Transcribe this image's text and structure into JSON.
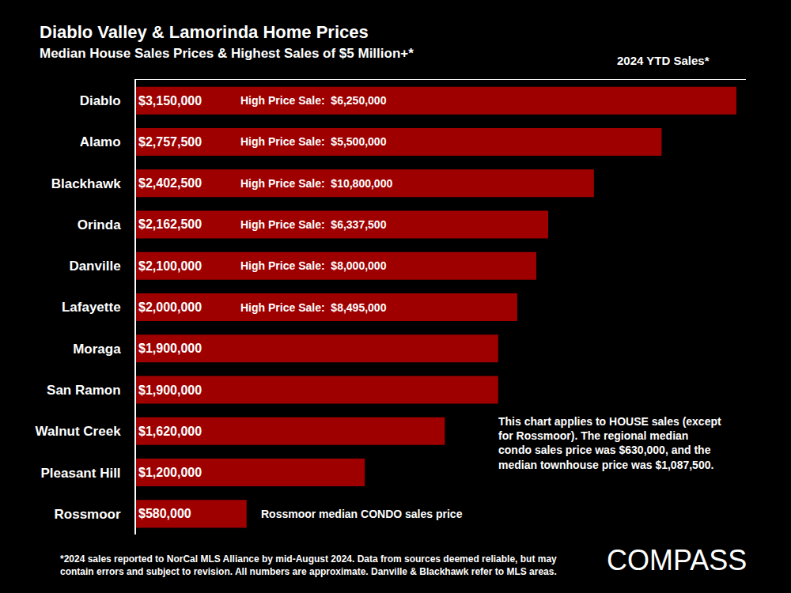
{
  "chart_data": {
    "type": "bar",
    "orientation": "horizontal",
    "title": "Diablo Valley & Lamorinda Home Prices",
    "subtitle": "Median House Sales Prices & Highest Sales of $5 Million+*",
    "period_label": "2024 YTD Sales*",
    "categories": [
      "Diablo",
      "Alamo",
      "Blackhawk",
      "Orinda",
      "Danville",
      "Lafayette",
      "Moraga",
      "San Ramon",
      "Walnut Creek",
      "Pleasant Hill",
      "Rossmoor"
    ],
    "values": [
      3150000,
      2757500,
      2402500,
      2162500,
      2100000,
      2000000,
      1900000,
      1900000,
      1620000,
      1200000,
      580000
    ],
    "value_labels": [
      "$3,150,000",
      "$2,757,500",
      "$2,402,500",
      "$2,162,500",
      "$2,100,000",
      "$2,000,000",
      "$1,900,000",
      "$1,900,000",
      "$1,620,000",
      "$1,200,000",
      "$580,000"
    ],
    "data_labels": true,
    "color": "#9e0000",
    "xlim": [
      0,
      3200000
    ],
    "xticks": [],
    "tick_labels": "y",
    "grid": false,
    "annotations": [
      {
        "category": "Diablo",
        "text": "High Price Sale:  $6,250,000"
      },
      {
        "category": "Alamo",
        "text": "High Price Sale:  $5,500,000"
      },
      {
        "category": "Blackhawk",
        "text": "High Price Sale:  $10,800,000"
      },
      {
        "category": "Orinda",
        "text": "High Price Sale:  $6,337,500"
      },
      {
        "category": "Danville",
        "text": "High Price Sale:  $8,000,000"
      },
      {
        "category": "Lafayette",
        "text": "High Price Sale:  $8,495,000"
      },
      {
        "category": "Rossmoor",
        "text": "Rossmoor median CONDO sales price"
      }
    ],
    "note": [
      "This chart applies to HOUSE sales (except",
      "for Rossmoor). The regional median",
      "condo sales price was $630,000, and the",
      "median townhouse price was $1,087,500."
    ],
    "footnote": [
      "*2024 sales reported to NorCal MLS Alliance by mid-August 2024. Data from sources deemed reliable, but may",
      "contain errors and subject to revision. All numbers are approximate. Danville & Blackhawk refer to MLS areas."
    ],
    "logo": "COMPASS"
  }
}
